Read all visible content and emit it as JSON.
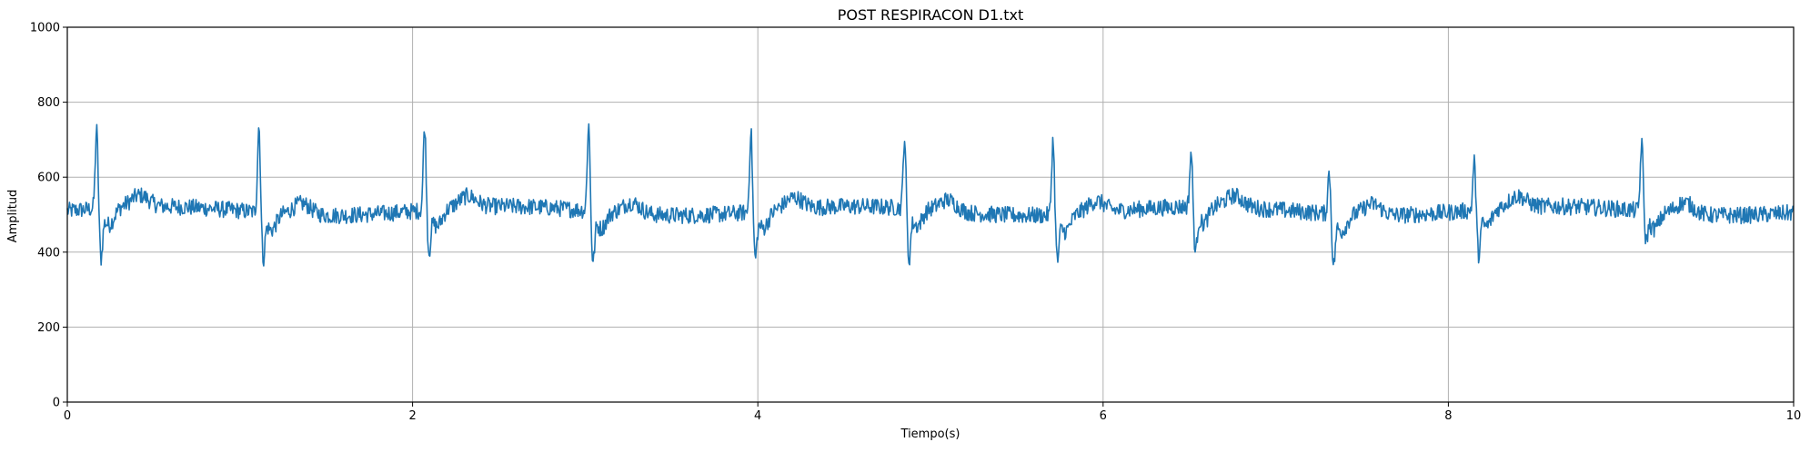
{
  "chart_data": {
    "type": "line",
    "title": "POST RESPIRACON D1.txt",
    "xlabel": "Tiempo(s)",
    "ylabel": "Amplitud",
    "xlim": [
      0,
      10
    ],
    "ylim": [
      0,
      1000
    ],
    "xticks": [
      0,
      2,
      4,
      6,
      8,
      10
    ],
    "yticks": [
      0,
      200,
      400,
      600,
      800,
      1000
    ],
    "grid": true,
    "series": [
      {
        "color": "#1f77b4",
        "baseline": 510,
        "r_peaks": [
          {
            "t": 0.17,
            "peak": 725,
            "trough": 390
          },
          {
            "t": 1.11,
            "peak": 745,
            "trough": 400
          },
          {
            "t": 2.07,
            "peak": 740,
            "trough": 410
          },
          {
            "t": 3.02,
            "peak": 745,
            "trough": 385
          },
          {
            "t": 3.96,
            "peak": 730,
            "trough": 400
          },
          {
            "t": 4.85,
            "peak": 705,
            "trough": 385
          },
          {
            "t": 5.71,
            "peak": 715,
            "trough": 400
          },
          {
            "t": 6.51,
            "peak": 660,
            "trough": 400
          },
          {
            "t": 7.31,
            "peak": 625,
            "trough": 385
          },
          {
            "t": 8.15,
            "peak": 645,
            "trough": 405
          },
          {
            "t": 9.12,
            "peak": 700,
            "trough": 445
          }
        ]
      }
    ]
  }
}
